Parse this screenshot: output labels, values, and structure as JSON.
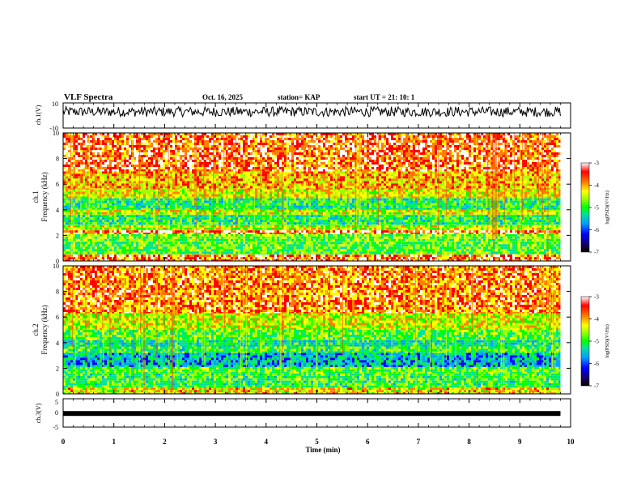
{
  "header": {
    "title": "VLF Spectra",
    "date": "Oct. 16, 2025",
    "station": "station= KAP",
    "start": "start  UT  =   21: 10: 1"
  },
  "chart_data": [
    {
      "type": "line",
      "id": "ch1-waveform",
      "ylabel": "ch.1(V)",
      "ylim": [
        -10,
        10
      ],
      "yticks": [
        "10",
        "-10"
      ],
      "xlim": [
        0,
        10
      ],
      "description_of_series": "noisy waveform centered near +3 V",
      "mean": 3,
      "amplitude": 4,
      "x_end": 9.8
    },
    {
      "type": "heatmap",
      "id": "ch1-spectrogram",
      "ylabel_line1": "ch.1",
      "ylabel_line2": "Frequency  (kHz)",
      "ylim": [
        0,
        10
      ],
      "yticks": [
        "0",
        "2",
        "4",
        "6",
        "8",
        "10"
      ],
      "xlim": [
        0,
        9.8
      ],
      "bands_khz": [
        {
          "from": 0.0,
          "to": 0.5,
          "level": -3.6
        },
        {
          "from": 0.5,
          "to": 1.5,
          "level": -4.9
        },
        {
          "from": 1.5,
          "to": 2.1,
          "level": -4.8
        },
        {
          "from": 2.1,
          "to": 2.4,
          "level": -3.4
        },
        {
          "from": 2.4,
          "to": 2.8,
          "level": -4.5
        },
        {
          "from": 2.8,
          "to": 3.6,
          "level": -5.1
        },
        {
          "from": 3.6,
          "to": 4.0,
          "level": -4.4
        },
        {
          "from": 4.0,
          "to": 4.9,
          "level": -5.1
        },
        {
          "from": 4.9,
          "to": 5.6,
          "level": -4.3
        },
        {
          "from": 5.6,
          "to": 7.0,
          "level": -4.0
        },
        {
          "from": 7.0,
          "to": 10.0,
          "level": -3.5
        }
      ]
    },
    {
      "type": "heatmap",
      "id": "ch2-spectrogram",
      "ylabel_line1": "ch.2",
      "ylabel_line2": "Frequency  (kHz)",
      "ylim": [
        0,
        10
      ],
      "yticks": [
        "0",
        "2",
        "4",
        "6",
        "8",
        "10"
      ],
      "xlim": [
        0,
        9.8
      ],
      "bands_khz": [
        {
          "from": 0.0,
          "to": 0.5,
          "level": -4.2
        },
        {
          "from": 0.5,
          "to": 1.6,
          "level": -5.0
        },
        {
          "from": 1.6,
          "to": 2.1,
          "level": -4.9
        },
        {
          "from": 2.1,
          "to": 3.2,
          "level": -5.6
        },
        {
          "from": 3.2,
          "to": 3.7,
          "level": -5.0
        },
        {
          "from": 3.7,
          "to": 4.2,
          "level": -5.3
        },
        {
          "from": 4.2,
          "to": 5.0,
          "level": -4.9
        },
        {
          "from": 5.0,
          "to": 6.3,
          "level": -4.4
        },
        {
          "from": 6.3,
          "to": 10.0,
          "level": -3.7
        }
      ]
    },
    {
      "type": "line",
      "id": "ch3-waveform",
      "ylabel": "ch.3(V)",
      "ylim": [
        -5,
        5
      ],
      "yticks": [
        "5",
        "0",
        "-5"
      ],
      "xlim": [
        0,
        10
      ],
      "constant_value": -0.2,
      "x_end": 9.8
    }
  ],
  "colorbars": [
    {
      "id": "colorbar-ch1",
      "label": "log(PSD)(V²/Hz)",
      "range": [
        -7,
        -3
      ],
      "ticks": [
        "-3",
        "-4",
        "-5",
        "-6",
        "-7"
      ]
    },
    {
      "id": "colorbar-ch2",
      "label": "log(PSD)(V²/Hz)",
      "range": [
        -7,
        -3
      ],
      "ticks": [
        "-3",
        "-4",
        "-5",
        "-6",
        "-7"
      ]
    }
  ],
  "time_axis": {
    "label": "Time  (min)",
    "ticks": [
      "0",
      "1",
      "2",
      "3",
      "4",
      "5",
      "6",
      "7",
      "8",
      "9",
      "10"
    ],
    "range": [
      0,
      10
    ]
  },
  "colormap": [
    "#000000",
    "#1a0060",
    "#0000ff",
    "#00a0ff",
    "#00e0a0",
    "#00ff00",
    "#a0ff00",
    "#ffff00",
    "#ff8000",
    "#ff0000",
    "#ffffff"
  ]
}
